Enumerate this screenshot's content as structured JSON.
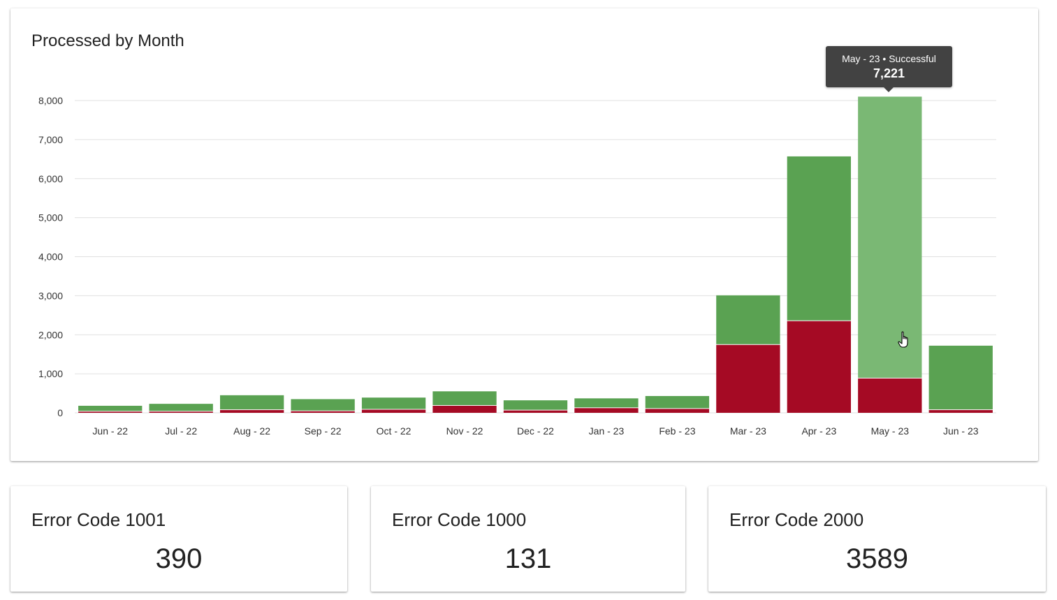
{
  "chart_card": {
    "title": "Processed by Month"
  },
  "tooltip": {
    "label": "May - 23 • Successful",
    "value": "7,221"
  },
  "colors": {
    "successful": "#5aa252",
    "successful_hover": "#7ab874",
    "error": "#a50a24"
  },
  "chart_data": {
    "type": "bar",
    "stacked": true,
    "title": "Processed by Month",
    "categories": [
      "Jun - 22",
      "Jul - 22",
      "Aug - 22",
      "Sep - 22",
      "Oct - 22",
      "Nov - 22",
      "Dec - 22",
      "Jan - 23",
      "Feb - 23",
      "Mar - 23",
      "Apr - 23",
      "May - 23",
      "Jun - 23"
    ],
    "series": [
      {
        "name": "",
        "color": "#a50a24",
        "values": [
          30,
          30,
          70,
          40,
          80,
          180,
          60,
          120,
          100,
          1740,
          2350,
          880,
          70
        ]
      },
      {
        "name": "Successful",
        "color": "#5aa252",
        "values": [
          150,
          200,
          380,
          310,
          310,
          370,
          260,
          250,
          330,
          1270,
          4220,
          7221,
          1650
        ]
      }
    ],
    "y_ticks": [
      "0",
      "1,000",
      "2,000",
      "3,000",
      "4,000",
      "5,000",
      "6,000",
      "7,000",
      "8,000"
    ],
    "ylim": [
      0,
      8000
    ],
    "grid": true,
    "highlighted": {
      "category": "May - 23",
      "series": "Successful"
    }
  },
  "error_cards": [
    {
      "label": "Error Code 1001",
      "value": "390"
    },
    {
      "label": "Error Code 1000",
      "value": "131"
    },
    {
      "label": "Error Code 2000",
      "value": "3589"
    }
  ]
}
